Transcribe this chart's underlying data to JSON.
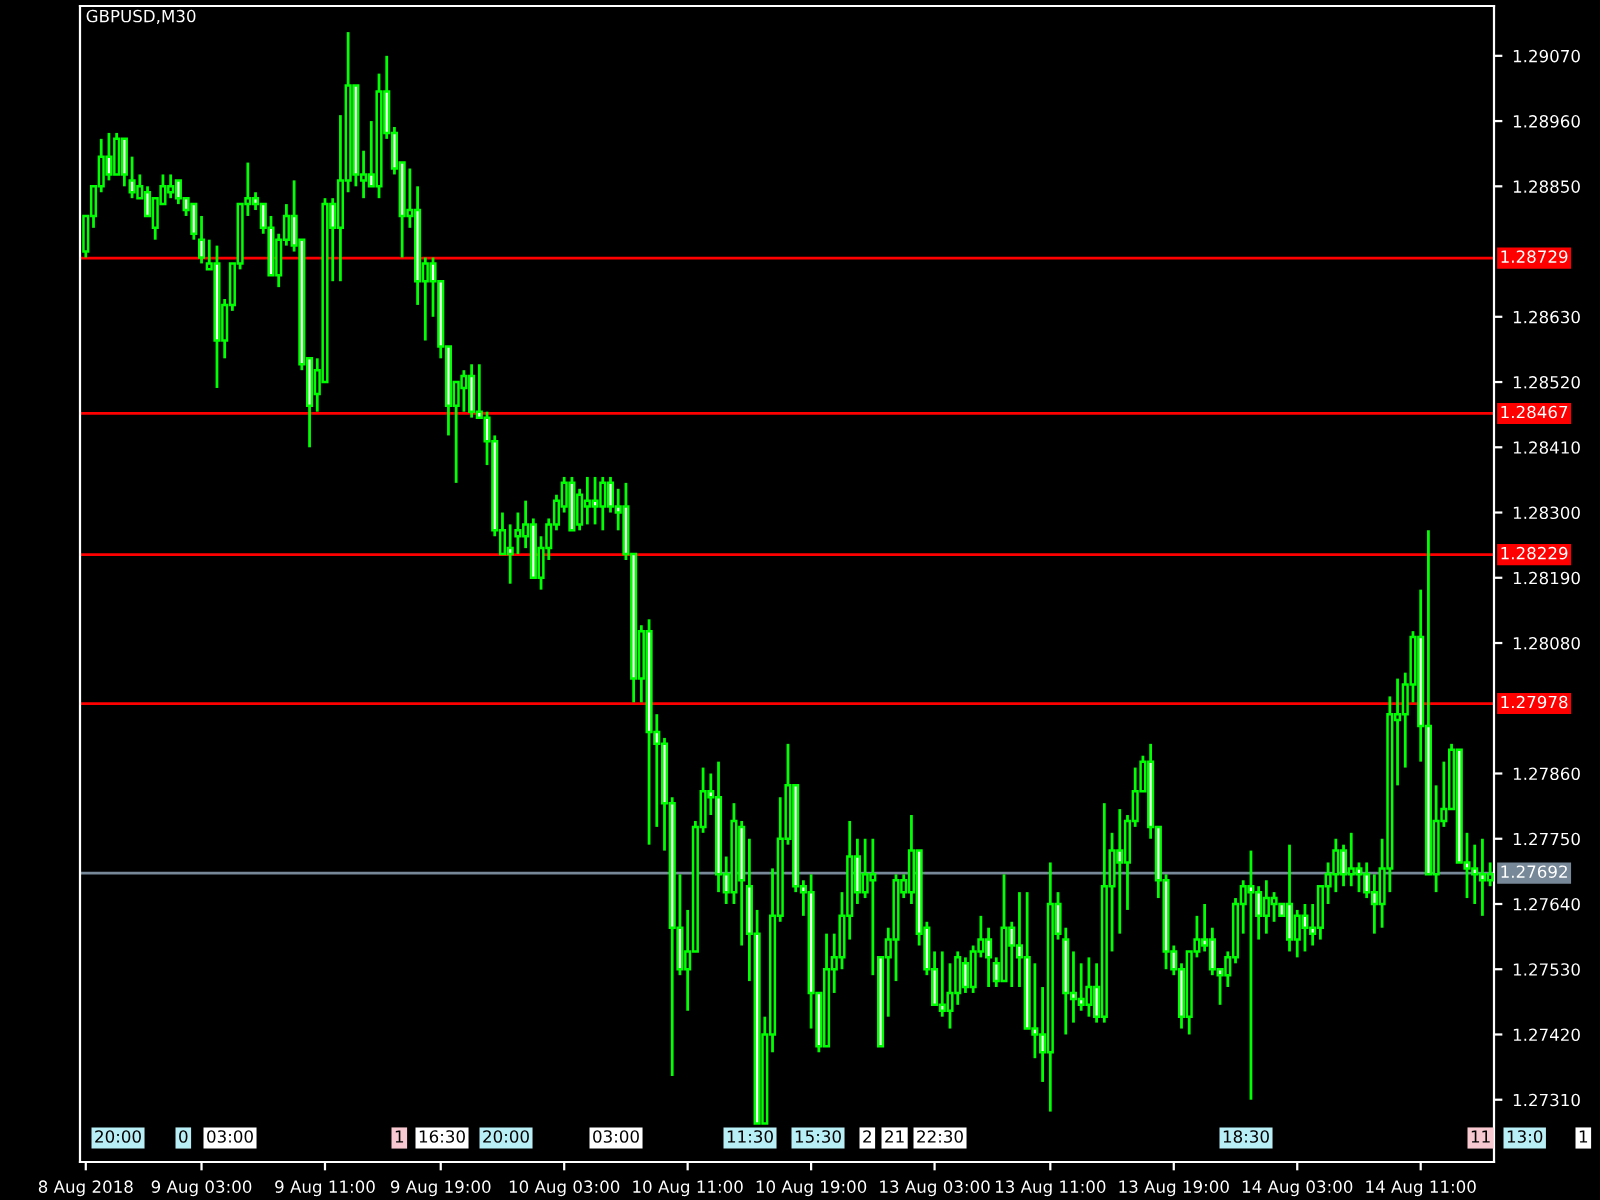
{
  "chart_data": {
    "type": "candlestick",
    "title": "GBPUSD,M30",
    "color": "#00ff00",
    "categories": [
      "8 Aug 2018",
      null,
      null,
      null,
      null,
      null,
      null,
      null,
      null,
      null,
      null,
      null,
      null,
      null,
      null,
      "9 Aug 03:00",
      null,
      null,
      null,
      null,
      null,
      null,
      null,
      null,
      null,
      null,
      null,
      null,
      null,
      null,
      null,
      "9 Aug 11:00",
      null,
      null,
      null,
      null,
      null,
      null,
      null,
      null,
      null,
      null,
      null,
      null,
      null,
      null,
      "9 Aug 19:00",
      null,
      null,
      null,
      null,
      null,
      null,
      null,
      null,
      null,
      null,
      null,
      null,
      null,
      null,
      null,
      "10 Aug 03:00",
      null,
      null,
      null,
      null,
      null,
      null,
      null,
      null,
      null,
      null,
      null,
      null,
      null,
      null,
      null,
      "10 Aug 11:00",
      null,
      null,
      null,
      null,
      null,
      null,
      null,
      null,
      null,
      null,
      null,
      null,
      null,
      null,
      null,
      "10 Aug 19:00",
      null,
      null,
      null,
      null,
      null,
      null,
      null,
      null,
      null,
      null,
      null,
      null,
      null,
      null,
      null,
      "13 Aug 03:00",
      null,
      null,
      null,
      null,
      null,
      null,
      null,
      null,
      null,
      null,
      null,
      null,
      null,
      null,
      "13 Aug 11:00",
      null,
      null,
      null,
      null,
      null,
      null,
      null,
      null,
      null,
      null,
      null,
      null,
      null,
      null,
      null,
      "13 Aug 19:00",
      null,
      null,
      null,
      null,
      null,
      null,
      null,
      null,
      null,
      null,
      null,
      null,
      null,
      null,
      null,
      "14 Aug 03:00",
      null,
      null,
      null,
      null,
      null,
      null,
      null,
      null,
      null,
      null,
      null,
      null,
      null,
      null,
      null,
      "14 Aug 11:00",
      null,
      null,
      null,
      null,
      null,
      null,
      null,
      null,
      null
    ],
    "ohlc": [
      [
        1.2874,
        1.288,
        1.2873,
        1.288
      ],
      [
        1.288,
        1.2885,
        1.2878,
        1.2885
      ],
      [
        1.2885,
        1.2893,
        1.2884,
        1.289
      ],
      [
        1.289,
        1.2894,
        1.2886,
        1.2887
      ],
      [
        1.2887,
        1.2894,
        1.2887,
        1.2893
      ],
      [
        1.2893,
        1.2893,
        1.2885,
        1.2887
      ],
      [
        1.2886,
        1.289,
        1.2883,
        1.2884
      ],
      [
        1.2883,
        1.2887,
        1.2883,
        1.2885
      ],
      [
        1.2884,
        1.2885,
        1.288,
        1.288
      ],
      [
        1.2878,
        1.2883,
        1.2876,
        1.2883
      ],
      [
        1.2882,
        1.2887,
        1.2882,
        1.2885
      ],
      [
        1.2884,
        1.2887,
        1.2883,
        1.2885
      ],
      [
        1.2886,
        1.2886,
        1.2882,
        1.2883
      ],
      [
        1.2883,
        1.2883,
        1.288,
        1.2881
      ],
      [
        1.2882,
        1.2882,
        1.2876,
        1.2877
      ],
      [
        1.2876,
        1.288,
        1.2872,
        1.2873
      ],
      [
        1.2871,
        1.2876,
        1.2871,
        1.2872
      ],
      [
        1.2872,
        1.2875,
        1.2851,
        1.2859
      ],
      [
        1.2859,
        1.2866,
        1.2856,
        1.2865
      ],
      [
        1.2865,
        1.2872,
        1.2864,
        1.2872
      ],
      [
        1.2872,
        1.2882,
        1.2871,
        1.2882
      ],
      [
        1.2882,
        1.2889,
        1.288,
        1.2883
      ],
      [
        1.2883,
        1.2884,
        1.2881,
        1.2882
      ],
      [
        1.2882,
        1.2882,
        1.2877,
        1.2878
      ],
      [
        1.2878,
        1.288,
        1.287,
        1.287
      ],
      [
        1.287,
        1.2877,
        1.2868,
        1.2876
      ],
      [
        1.2876,
        1.2882,
        1.2875,
        1.288
      ],
      [
        1.288,
        1.2886,
        1.2874,
        1.2875
      ],
      [
        1.2876,
        1.2876,
        1.2854,
        1.2855
      ],
      [
        1.2856,
        1.2856,
        1.2841,
        1.2848
      ],
      [
        1.285,
        1.2856,
        1.2847,
        1.2854
      ],
      [
        1.2852,
        1.2883,
        1.2852,
        1.2882
      ],
      [
        1.2882,
        1.2883,
        1.2869,
        1.2878
      ],
      [
        1.2878,
        1.2897,
        1.2869,
        1.2886
      ],
      [
        1.2886,
        1.2911,
        1.2884,
        1.2902
      ],
      [
        1.2902,
        1.2902,
        1.2885,
        1.2887
      ],
      [
        1.2886,
        1.2891,
        1.2883,
        1.2887
      ],
      [
        1.2887,
        1.2896,
        1.2885,
        1.2885
      ],
      [
        1.2885,
        1.2904,
        1.2883,
        1.2901
      ],
      [
        1.2901,
        1.2907,
        1.2893,
        1.2894
      ],
      [
        1.2894,
        1.2895,
        1.2887,
        1.2888
      ],
      [
        1.2889,
        1.2889,
        1.2873,
        1.288
      ],
      [
        1.288,
        1.2888,
        1.2878,
        1.2881
      ],
      [
        1.2881,
        1.2885,
        1.2865,
        1.2869
      ],
      [
        1.2869,
        1.2873,
        1.2859,
        1.2872
      ],
      [
        1.2872,
        1.2873,
        1.2863,
        1.2869
      ],
      [
        1.2869,
        1.2869,
        1.2856,
        1.2858
      ],
      [
        1.2858,
        1.2858,
        1.2843,
        1.2848
      ],
      [
        1.2848,
        1.2852,
        1.2835,
        1.2852
      ],
      [
        1.2851,
        1.2854,
        1.2847,
        1.2853
      ],
      [
        1.2853,
        1.2855,
        1.2846,
        1.2847
      ],
      [
        1.2847,
        1.2855,
        1.2846,
        1.2846
      ],
      [
        1.2846,
        1.2847,
        1.2838,
        1.2842
      ],
      [
        1.2842,
        1.2843,
        1.2826,
        1.2827
      ],
      [
        1.2823,
        1.283,
        1.2823,
        1.2827
      ],
      [
        1.2824,
        1.2828,
        1.2818,
        1.2823
      ],
      [
        1.2826,
        1.283,
        1.2823,
        1.2827
      ],
      [
        1.2826,
        1.2832,
        1.2824,
        1.2828
      ],
      [
        1.2828,
        1.2829,
        1.2819,
        1.2819
      ],
      [
        1.2819,
        1.2826,
        1.2817,
        1.2824
      ],
      [
        1.2824,
        1.2829,
        1.2822,
        1.2828
      ],
      [
        1.2828,
        1.2833,
        1.2827,
        1.2832
      ],
      [
        1.2831,
        1.2836,
        1.283,
        1.2835
      ],
      [
        1.2835,
        1.2836,
        1.2827,
        1.2827
      ],
      [
        1.2828,
        1.2834,
        1.2827,
        1.2833
      ],
      [
        1.2831,
        1.2836,
        1.2828,
        1.2832
      ],
      [
        1.2832,
        1.2836,
        1.2828,
        1.2831
      ],
      [
        1.2831,
        1.2836,
        1.2827,
        1.2835
      ],
      [
        1.2835,
        1.2836,
        1.283,
        1.2831
      ],
      [
        1.2831,
        1.2834,
        1.2827,
        1.283
      ],
      [
        1.2831,
        1.2835,
        1.2822,
        1.2823
      ],
      [
        1.2823,
        1.2823,
        1.2798,
        1.2802
      ],
      [
        1.2802,
        1.2811,
        1.2798,
        1.281
      ],
      [
        1.281,
        1.2812,
        1.2774,
        1.2793
      ],
      [
        1.2793,
        1.2796,
        1.2777,
        1.2791
      ],
      [
        1.2791,
        1.2792,
        1.2773,
        1.2781
      ],
      [
        1.2781,
        1.2782,
        1.2735,
        1.276
      ],
      [
        1.276,
        1.2769,
        1.2752,
        1.2753
      ],
      [
        1.2753,
        1.2763,
        1.2746,
        1.2756
      ],
      [
        1.2756,
        1.2778,
        1.2756,
        1.2777
      ],
      [
        1.2777,
        1.2787,
        1.2776,
        1.2783
      ],
      [
        1.2783,
        1.2786,
        1.2779,
        1.2782
      ],
      [
        1.2782,
        1.2788,
        1.2766,
        1.2769
      ],
      [
        1.2769,
        1.2772,
        1.2764,
        1.2766
      ],
      [
        1.2766,
        1.2781,
        1.2764,
        1.2778
      ],
      [
        1.2777,
        1.2778,
        1.2757,
        1.2768
      ],
      [
        1.2767,
        1.2775,
        1.2751,
        1.2759
      ],
      [
        1.2759,
        1.2763,
        1.2727,
        1.2727
      ],
      [
        1.2727,
        1.2745,
        1.2727,
        1.2742
      ],
      [
        1.2742,
        1.277,
        1.2739,
        1.2762
      ],
      [
        1.2762,
        1.2782,
        1.2761,
        1.2775
      ],
      [
        1.2775,
        1.2791,
        1.2774,
        1.2784
      ],
      [
        1.2784,
        1.2784,
        1.2766,
        1.2767
      ],
      [
        1.2767,
        1.2768,
        1.2762,
        1.2766
      ],
      [
        1.2766,
        1.2769,
        1.2743,
        1.2749
      ],
      [
        1.2749,
        1.2749,
        1.2739,
        1.274
      ],
      [
        1.274,
        1.2759,
        1.274,
        1.2753
      ],
      [
        1.2753,
        1.2759,
        1.2749,
        1.2755
      ],
      [
        1.2755,
        1.2766,
        1.2753,
        1.2762
      ],
      [
        1.2762,
        1.2778,
        1.2758,
        1.2772
      ],
      [
        1.2772,
        1.2775,
        1.2764,
        1.2766
      ],
      [
        1.2766,
        1.2775,
        1.2765,
        1.2769
      ],
      [
        1.2768,
        1.2775,
        1.2752,
        1.2769
      ],
      [
        1.2755,
        1.2755,
        1.274,
        1.274
      ],
      [
        1.2755,
        1.276,
        1.2745,
        1.2758
      ],
      [
        1.2758,
        1.2769,
        1.2751,
        1.2768
      ],
      [
        1.2766,
        1.2769,
        1.2765,
        1.2768
      ],
      [
        1.2766,
        1.2779,
        1.2764,
        1.2773
      ],
      [
        1.2773,
        1.2773,
        1.2757,
        1.2759
      ],
      [
        1.276,
        1.2761,
        1.2752,
        1.2753
      ],
      [
        1.2753,
        1.2756,
        1.2747,
        1.2747
      ],
      [
        1.2747,
        1.2756,
        1.2745,
        1.2746
      ],
      [
        1.2746,
        1.2754,
        1.2743,
        1.2749
      ],
      [
        1.2749,
        1.2756,
        1.2747,
        1.2755
      ],
      [
        1.2754,
        1.2755,
        1.2749,
        1.275
      ],
      [
        1.275,
        1.2757,
        1.2749,
        1.2756
      ],
      [
        1.2756,
        1.2762,
        1.2755,
        1.2758
      ],
      [
        1.2758,
        1.276,
        1.275,
        1.2755
      ],
      [
        1.2754,
        1.2755,
        1.275,
        1.2751
      ],
      [
        1.2751,
        1.2769,
        1.2751,
        1.276
      ],
      [
        1.276,
        1.2761,
        1.275,
        1.2757
      ],
      [
        1.2757,
        1.2766,
        1.275,
        1.2755
      ],
      [
        1.2755,
        1.2766,
        1.2743,
        1.2743
      ],
      [
        1.2743,
        1.2754,
        1.2738,
        1.2742
      ],
      [
        1.2742,
        1.275,
        1.2734,
        1.2739
      ],
      [
        1.2739,
        1.2771,
        1.2729,
        1.2764
      ],
      [
        1.2764,
        1.2766,
        1.2758,
        1.2759
      ],
      [
        1.2758,
        1.276,
        1.2742,
        1.2749
      ],
      [
        1.2749,
        1.2756,
        1.2744,
        1.2748
      ],
      [
        1.2748,
        1.2754,
        1.2746,
        1.2747
      ],
      [
        1.2747,
        1.2755,
        1.2745,
        1.275
      ],
      [
        1.275,
        1.2754,
        1.2744,
        1.2745
      ],
      [
        1.2745,
        1.2781,
        1.2744,
        1.2767
      ],
      [
        1.2767,
        1.2776,
        1.2756,
        1.2773
      ],
      [
        1.2773,
        1.278,
        1.2759,
        1.2771
      ],
      [
        1.2771,
        1.2779,
        1.2763,
        1.2778
      ],
      [
        1.2778,
        1.2787,
        1.2777,
        1.2783
      ],
      [
        1.2783,
        1.2789,
        1.2783,
        1.2788
      ],
      [
        1.2788,
        1.2791,
        1.2775,
        1.2777
      ],
      [
        1.2777,
        1.2777,
        1.2765,
        1.2768
      ],
      [
        1.2768,
        1.2769,
        1.2753,
        1.2756
      ],
      [
        1.2756,
        1.2757,
        1.2752,
        1.2753
      ],
      [
        1.2753,
        1.2754,
        1.2743,
        1.2745
      ],
      [
        1.2745,
        1.2756,
        1.2742,
        1.2756
      ],
      [
        1.2756,
        1.2762,
        1.2755,
        1.2758
      ],
      [
        1.2758,
        1.2764,
        1.2756,
        1.2757
      ],
      [
        1.2758,
        1.276,
        1.2752,
        1.2753
      ],
      [
        1.2753,
        1.2753,
        1.2747,
        1.2752
      ],
      [
        1.2752,
        1.2756,
        1.275,
        1.2755
      ],
      [
        1.2755,
        1.2765,
        1.2754,
        1.2764
      ],
      [
        1.2764,
        1.2768,
        1.2759,
        1.2767
      ],
      [
        1.2767,
        1.2773,
        1.2731,
        1.2766
      ],
      [
        1.2766,
        1.2767,
        1.2758,
        1.2762
      ],
      [
        1.2762,
        1.2768,
        1.2759,
        1.2765
      ],
      [
        1.2764,
        1.2766,
        1.2761,
        1.2765
      ],
      [
        1.2764,
        1.2764,
        1.2762,
        1.2762
      ],
      [
        1.2764,
        1.2774,
        1.2756,
        1.2758
      ],
      [
        1.2758,
        1.2763,
        1.2755,
        1.2762
      ],
      [
        1.2762,
        1.2764,
        1.2756,
        1.276
      ],
      [
        1.276,
        1.2764,
        1.2757,
        1.2759
      ],
      [
        1.276,
        1.2767,
        1.2758,
        1.2767
      ],
      [
        1.2767,
        1.2771,
        1.2764,
        1.2769
      ],
      [
        1.2769,
        1.2775,
        1.2766,
        1.2773
      ],
      [
        1.2773,
        1.2774,
        1.2767,
        1.2769
      ],
      [
        1.2769,
        1.2776,
        1.2767,
        1.277
      ],
      [
        1.277,
        1.2771,
        1.2766,
        1.2769
      ],
      [
        1.2769,
        1.2771,
        1.2765,
        1.2766
      ],
      [
        1.2766,
        1.2769,
        1.2759,
        1.2764
      ],
      [
        1.2764,
        1.2775,
        1.276,
        1.277
      ],
      [
        1.277,
        1.2799,
        1.2766,
        1.2796
      ],
      [
        1.2795,
        1.2802,
        1.2784,
        1.2796
      ],
      [
        1.2796,
        1.2803,
        1.2787,
        1.2801
      ],
      [
        1.2801,
        1.281,
        1.2798,
        1.2809
      ],
      [
        1.2809,
        1.2817,
        1.2788,
        1.2794
      ],
      [
        1.2794,
        1.2827,
        1.2769,
        1.2769
      ],
      [
        1.2769,
        1.2784,
        1.2766,
        1.2778
      ],
      [
        1.2778,
        1.2788,
        1.2777,
        1.278
      ],
      [
        1.278,
        1.2791,
        1.278,
        1.279
      ],
      [
        1.279,
        1.279,
        1.2771,
        1.2771
      ],
      [
        1.2771,
        1.2776,
        1.2765,
        1.277
      ],
      [
        1.277,
        1.2774,
        1.2764,
        1.2769
      ],
      [
        1.2769,
        1.2775,
        1.2762,
        1.2768
      ],
      [
        1.2768,
        1.2771,
        1.2767,
        1.2769
      ]
    ],
    "ylim": [
      1.27205,
      1.29154
    ],
    "yticks": [
      {
        "value": 1.2907,
        "label": "1.29070"
      },
      {
        "value": 1.2896,
        "label": "1.28960"
      },
      {
        "value": 1.2885,
        "label": "1.28850"
      },
      {
        "value": 1.2863,
        "label": "1.28630"
      },
      {
        "value": 1.2852,
        "label": "1.28520"
      },
      {
        "value": 1.2841,
        "label": "1.28410"
      },
      {
        "value": 1.283,
        "label": "1.28300"
      },
      {
        "value": 1.2819,
        "label": "1.28190"
      },
      {
        "value": 1.2808,
        "label": "1.28080"
      },
      {
        "value": 1.2786,
        "label": "1.27860"
      },
      {
        "value": 1.2775,
        "label": "1.27750"
      },
      {
        "value": 1.2764,
        "label": "1.27640"
      },
      {
        "value": 1.2753,
        "label": "1.27530"
      },
      {
        "value": 1.2742,
        "label": "1.27420"
      },
      {
        "value": 1.2731,
        "label": "1.27310"
      }
    ],
    "ref_lines": [
      {
        "axis": "y",
        "value": 1.28729,
        "label": "1.28729",
        "color": "#ff0000"
      },
      {
        "axis": "y",
        "value": 1.28467,
        "label": "1.28467",
        "color": "#ff0000"
      },
      {
        "axis": "y",
        "value": 1.28229,
        "label": "1.28229",
        "color": "#ff0000"
      },
      {
        "axis": "y",
        "value": 1.27978,
        "label": "1.27978",
        "color": "#ff0000"
      },
      {
        "axis": "y",
        "value": 1.27692,
        "label": "1.27692",
        "color": "#778899"
      }
    ],
    "annotations": [
      "20:00",
      "0",
      "03:00",
      "1",
      "16:30",
      "20:00",
      "03:00",
      "11:30",
      "15:30",
      "2",
      "21",
      "22:30",
      "18:30",
      "11",
      "13:0",
      "1"
    ],
    "grid": false
  }
}
